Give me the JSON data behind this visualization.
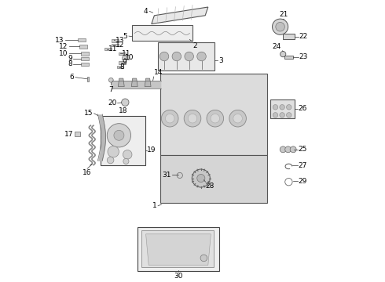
{
  "background_color": "#ffffff",
  "line_color": "#333333",
  "label_color": "#000000",
  "label_fontsize": 6.5,
  "part_color": "#d8d8d8",
  "box_edge_color": "#444444",
  "box_face_color": "#f0f0f0"
}
